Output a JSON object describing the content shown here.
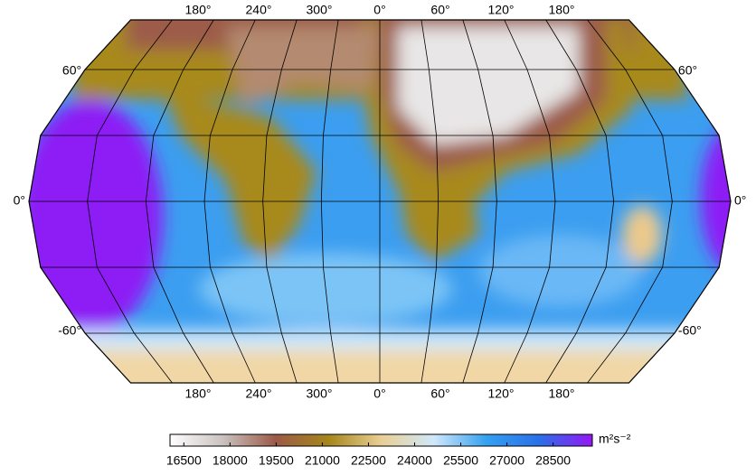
{
  "map": {
    "lon_labels": [
      "180°",
      "240°",
      "300°",
      "0°",
      "60°",
      "120°",
      "180°"
    ],
    "lat_labels": [
      "60°",
      "0°",
      "-60°"
    ]
  },
  "colorbar": {
    "units": "m²s⁻²",
    "range": [
      16050,
      29775
    ],
    "ticks": [
      16500,
      18000,
      19500,
      21000,
      22500,
      24000,
      25500,
      27000,
      28500
    ],
    "colors": [
      "#ffffff",
      "#c9c2c0",
      "#9c5a48",
      "#a5861c",
      "#e9cf95",
      "#cfe8fb",
      "#34a0f0",
      "#2a6fe8",
      "#9517f5"
    ]
  }
}
